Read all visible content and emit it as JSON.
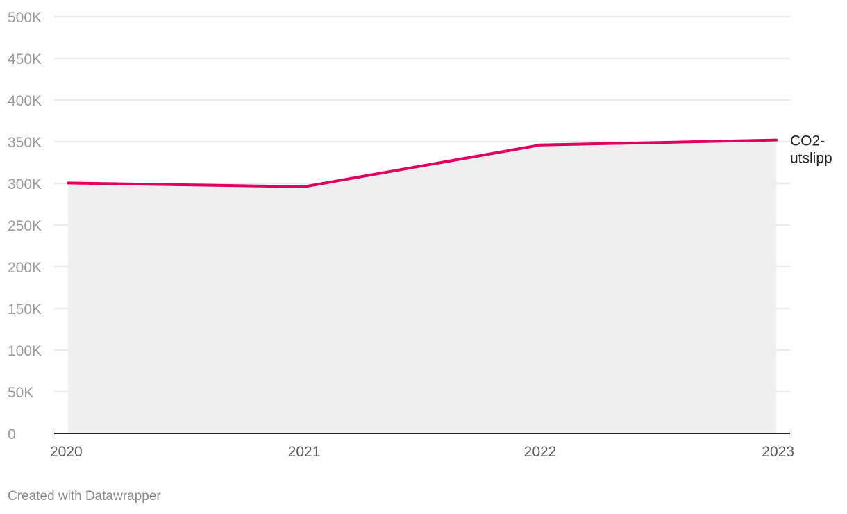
{
  "chart_data": {
    "type": "area",
    "title": "",
    "xlabel": "",
    "ylabel": "",
    "x": [
      "2020",
      "2021",
      "2022",
      "2023"
    ],
    "series": [
      {
        "name": "CO2-utslipp",
        "label_lines": [
          "CO2-",
          "utslipp"
        ],
        "values": [
          300500,
          296000,
          346000,
          352000
        ]
      }
    ],
    "ylim": [
      0,
      500000
    ],
    "yticks": [
      0,
      50000,
      100000,
      150000,
      200000,
      250000,
      300000,
      350000,
      400000,
      450000,
      500000
    ],
    "ytick_labels": [
      "0",
      "50K",
      "100K",
      "150K",
      "200K",
      "250K",
      "300K",
      "350K",
      "400K",
      "450K",
      "500K"
    ],
    "grid": true,
    "legend": "inline-right"
  },
  "colors": {
    "line": "#e0005f",
    "area": "#efefef",
    "grid": "#dddddd",
    "axis": "#222222"
  },
  "footer": {
    "credit": "Created with Datawrapper"
  }
}
